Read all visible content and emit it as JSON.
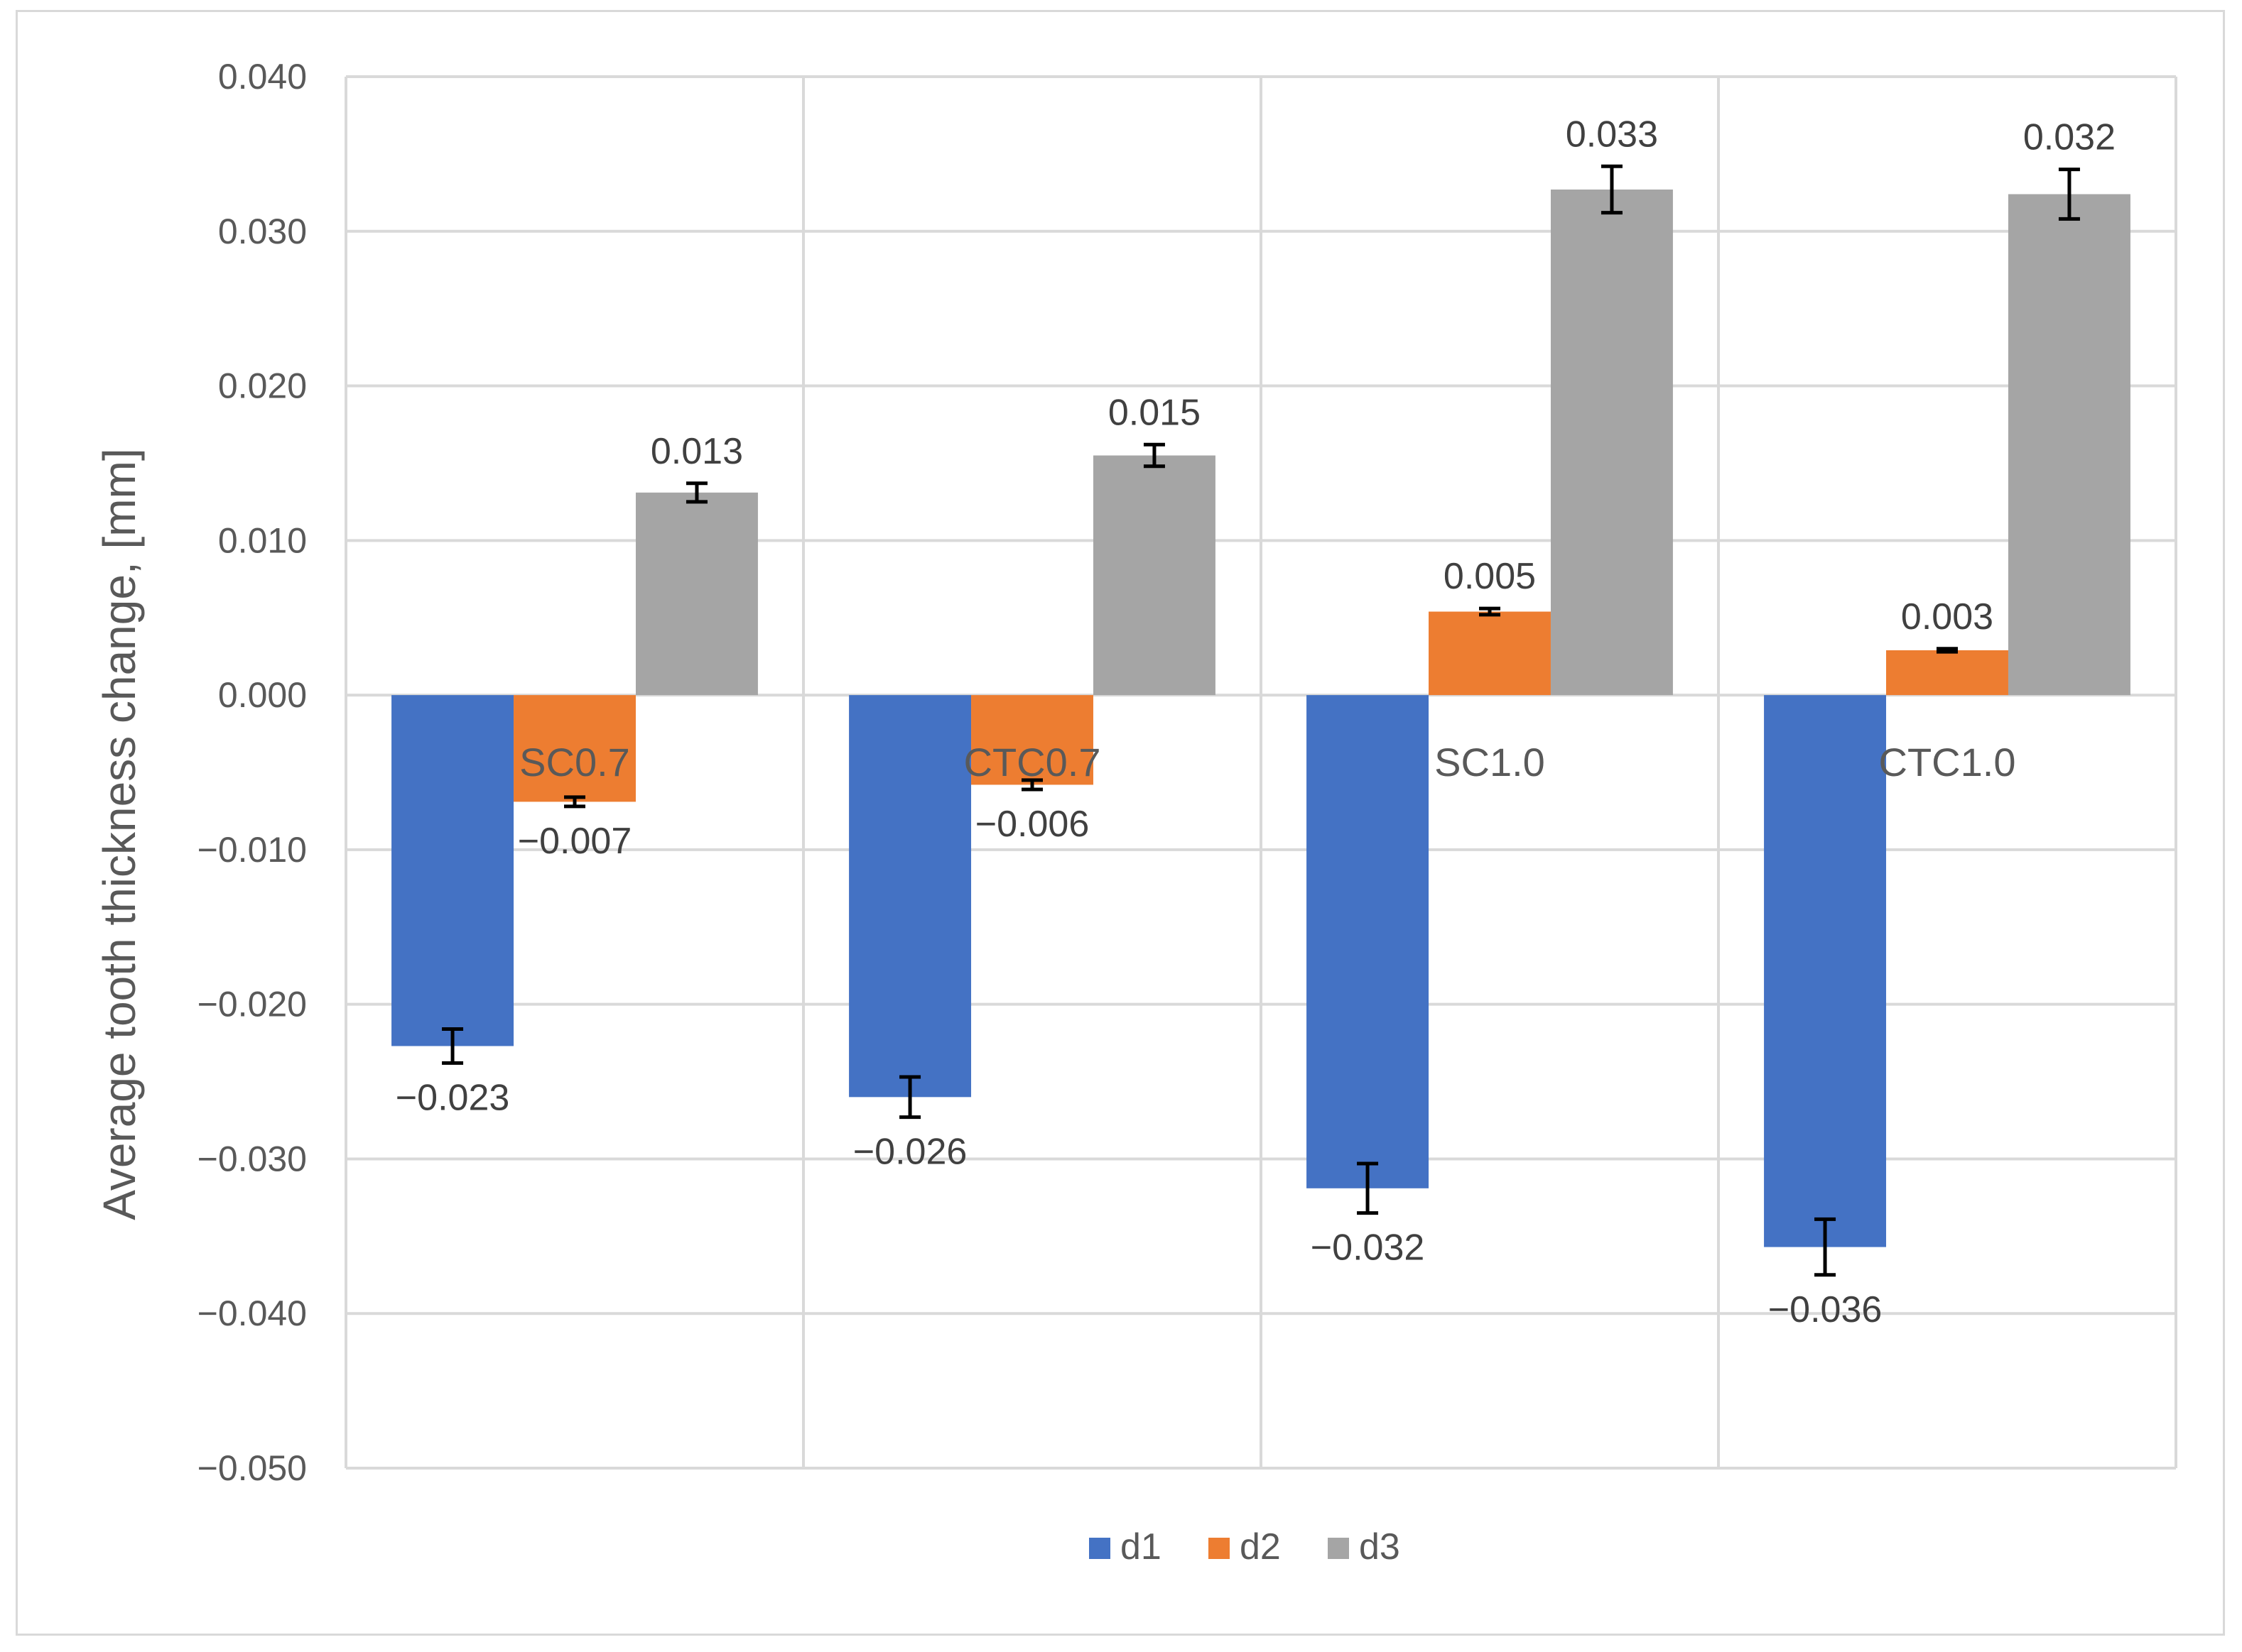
{
  "chart_data": {
    "type": "bar",
    "title": "",
    "xlabel": "",
    "ylabel": "Average tooth thickness change, [mm]",
    "ylim": [
      -0.05,
      0.04
    ],
    "ytick_step": 0.01,
    "ytick_labels": [
      "0.040",
      "0.030",
      "0.020",
      "0.010",
      "0.000",
      "−0.010",
      "−0.020",
      "−0.030",
      "−0.040",
      "−0.050"
    ],
    "categories": [
      "SC0.7",
      "CTC0.7",
      "SC1.0",
      "CTC1.0"
    ],
    "grid": true,
    "legend_position": "bottom",
    "series": [
      {
        "name": "d1",
        "color": "#4472c4",
        "values": [
          -0.0227,
          -0.026,
          -0.0319,
          -0.0357
        ],
        "errors": [
          0.0011,
          0.0013,
          0.0016,
          0.0018
        ],
        "labels": [
          "−0.023",
          "−0.026",
          "−0.032",
          "−0.036"
        ]
      },
      {
        "name": "d2",
        "color": "#ed7d31",
        "values": [
          -0.0069,
          -0.0058,
          0.0054,
          0.0029
        ],
        "errors": [
          0.0003,
          0.0003,
          0.0002,
          0.0001
        ],
        "labels": [
          "−0.007",
          "−0.006",
          "0.005",
          "0.003"
        ]
      },
      {
        "name": "d3",
        "color": "#a5a5a5",
        "values": [
          0.0131,
          0.0155,
          0.0327,
          0.0324
        ],
        "errors": [
          0.0006,
          0.0007,
          0.0015,
          0.0016
        ],
        "labels": [
          "0.013",
          "0.015",
          "0.033",
          "0.032"
        ]
      }
    ]
  }
}
